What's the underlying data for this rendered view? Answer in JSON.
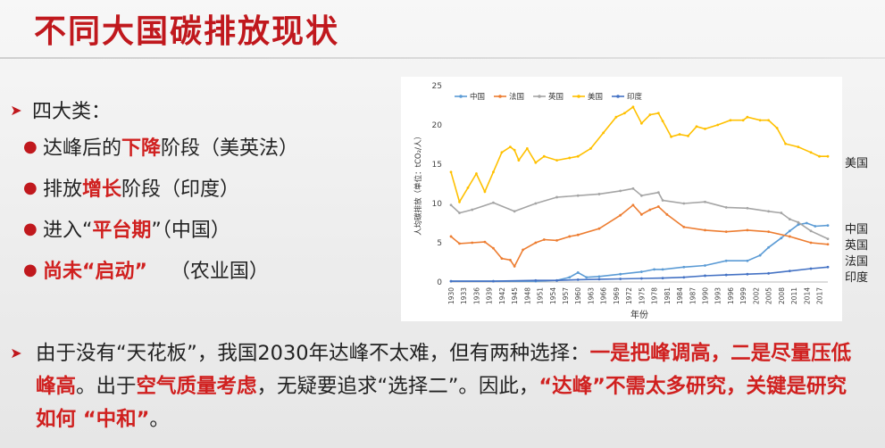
{
  "title": "不同大国碳排放现状",
  "categories_head": "四大类：",
  "items": [
    {
      "pre": "达峰后的",
      "hl": "下降",
      "post": "阶段（美英法）"
    },
    {
      "pre": "排放",
      "hl": "增长",
      "post": "阶段（印度）"
    },
    {
      "pre": "进入“",
      "hl": "平台期",
      "post": "”（中国）"
    },
    {
      "pre": "",
      "hl": "尚未“启动”",
      "post": "（农业国）"
    }
  ],
  "paragraph": [
    {
      "t": "由于没有“天花板”，我国2030年达峰不太难，但有两种选择：",
      "red": false,
      "bold": false
    },
    {
      "t": "一是把峰调高，二是尽量压低峰高",
      "red": true,
      "bold": true
    },
    {
      "t": "。出于",
      "red": false,
      "bold": false
    },
    {
      "t": "空气质量考虑",
      "red": true,
      "bold": true
    },
    {
      "t": "，无疑要追求“选择二”。因此，",
      "red": false,
      "bold": false
    },
    {
      "t": "“达峰”不需太多研究，关键是研究如何 “中和”",
      "red": true,
      "bold": true
    },
    {
      "t": "。",
      "red": false,
      "bold": false
    }
  ],
  "colors": {
    "title": "#c0181d",
    "highlight": "#d0201f"
  },
  "side_labels": [
    "美国",
    "中国",
    "英国",
    "法国",
    "印度"
  ],
  "chart_data": {
    "type": "line",
    "ylabel": "人均碳排放（单位：tCO₂/人）",
    "xlabel": "年份",
    "ylim": [
      0,
      25
    ],
    "yticks": [
      0,
      5,
      10,
      15,
      20,
      25
    ],
    "xticks": [
      "1930",
      "1933",
      "1936",
      "1939",
      "1942",
      "1945",
      "1948",
      "1951",
      "1954",
      "1957",
      "1960",
      "1963",
      "1966",
      "1969",
      "1972",
      "1975",
      "1978",
      "1981",
      "1984",
      "1987",
      "1990",
      "1993",
      "1996",
      "1999",
      "2002",
      "2005",
      "2008",
      "2011",
      "2014",
      "2017"
    ],
    "legend_position": "top",
    "series": [
      {
        "name": "中国",
        "color": "#5b9bd5",
        "x": [
          1930,
          1940,
          1950,
          1955,
          1958,
          1960,
          1962,
          1965,
          1970,
          1975,
          1978,
          1980,
          1985,
          1990,
          1995,
          2000,
          2003,
          2005,
          2008,
          2010,
          2012,
          2014,
          2016,
          2019
        ],
        "y": [
          0.1,
          0.1,
          0.1,
          0.2,
          0.6,
          1.2,
          0.6,
          0.7,
          1.0,
          1.3,
          1.6,
          1.6,
          1.9,
          2.1,
          2.7,
          2.7,
          3.4,
          4.4,
          5.6,
          6.5,
          7.3,
          7.5,
          7.1,
          7.2
        ]
      },
      {
        "name": "法国",
        "color": "#ed7d31",
        "x": [
          1930,
          1932,
          1935,
          1938,
          1940,
          1942,
          1944,
          1945,
          1947,
          1950,
          1952,
          1955,
          1958,
          1960,
          1965,
          1970,
          1973,
          1975,
          1977,
          1979,
          1981,
          1985,
          1990,
          1995,
          2000,
          2005,
          2010,
          2015,
          2019
        ],
        "y": [
          5.8,
          4.9,
          5.0,
          5.1,
          4.3,
          3.0,
          2.8,
          2.0,
          4.1,
          5.0,
          5.4,
          5.3,
          5.8,
          6.0,
          6.8,
          8.5,
          9.8,
          8.6,
          9.2,
          9.6,
          8.6,
          7.0,
          6.6,
          6.4,
          6.6,
          6.4,
          5.8,
          5.0,
          4.8
        ]
      },
      {
        "name": "英国",
        "color": "#a5a5a5",
        "x": [
          1930,
          1932,
          1935,
          1940,
          1945,
          1950,
          1955,
          1960,
          1965,
          1970,
          1973,
          1975,
          1979,
          1980,
          1985,
          1990,
          1995,
          2000,
          2005,
          2008,
          2010,
          2012,
          2015,
          2019
        ],
        "y": [
          9.8,
          8.8,
          9.2,
          10.1,
          9.0,
          10.0,
          10.8,
          11.0,
          11.2,
          11.6,
          11.9,
          11.0,
          11.4,
          10.4,
          10.0,
          10.2,
          9.5,
          9.4,
          9.0,
          8.8,
          8.0,
          7.6,
          6.5,
          5.5
        ]
      },
      {
        "name": "美国",
        "color": "#ffc000",
        "x": [
          1930,
          1932,
          1934,
          1936,
          1938,
          1940,
          1942,
          1944,
          1945,
          1946,
          1948,
          1950,
          1952,
          1955,
          1958,
          1960,
          1963,
          1966,
          1969,
          1971,
          1973,
          1975,
          1977,
          1979,
          1980,
          1982,
          1984,
          1986,
          1988,
          1990,
          1993,
          1996,
          1999,
          2000,
          2003,
          2005,
          2007,
          2009,
          2012,
          2015,
          2017,
          2019
        ],
        "y": [
          14.0,
          10.2,
          12.0,
          13.8,
          11.5,
          14.0,
          16.5,
          17.2,
          16.8,
          15.5,
          17.0,
          15.2,
          16.0,
          15.5,
          15.8,
          16.0,
          17.0,
          19.0,
          21.0,
          21.5,
          22.3,
          20.2,
          21.3,
          21.5,
          20.5,
          18.5,
          18.8,
          18.6,
          19.8,
          19.5,
          20.0,
          20.6,
          20.6,
          21.0,
          20.6,
          20.6,
          19.6,
          17.6,
          17.2,
          16.5,
          16.0,
          16.0
        ]
      },
      {
        "name": "印度",
        "color": "#4472c4",
        "x": [
          1930,
          1940,
          1950,
          1955,
          1960,
          1965,
          1970,
          1975,
          1980,
          1985,
          1990,
          1995,
          2000,
          2005,
          2010,
          2015,
          2019
        ],
        "y": [
          0.1,
          0.1,
          0.2,
          0.2,
          0.3,
          0.35,
          0.4,
          0.45,
          0.5,
          0.6,
          0.8,
          0.9,
          1.0,
          1.1,
          1.4,
          1.7,
          1.9
        ]
      }
    ]
  }
}
